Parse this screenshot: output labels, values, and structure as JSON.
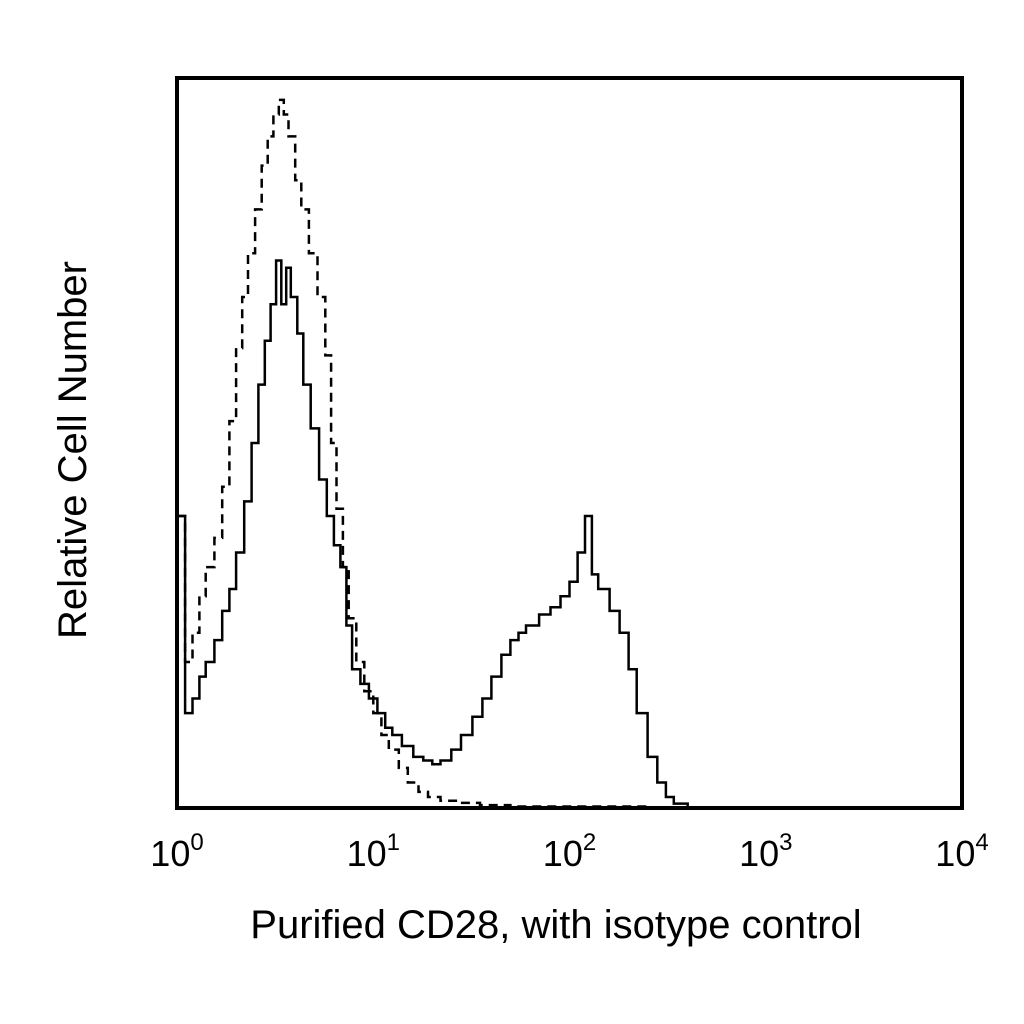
{
  "chart_data": {
    "type": "line",
    "title": "",
    "xlabel": "Purified CD28, with isotype control",
    "ylabel": "Relative Cell Number",
    "x_scale": "log",
    "xlim": [
      1,
      10000
    ],
    "ylim": [
      0,
      100
    ],
    "grid": false,
    "legend": "none",
    "x_ticks": [
      {
        "base": "10",
        "exp": "0",
        "value": 1
      },
      {
        "base": "10",
        "exp": "1",
        "value": 10
      },
      {
        "base": "10",
        "exp": "2",
        "value": 100
      },
      {
        "base": "10",
        "exp": "3",
        "value": 1000
      },
      {
        "base": "10",
        "exp": "4",
        "value": 10000
      }
    ],
    "series": [
      {
        "style": "solid",
        "color": "#000000",
        "points": [
          [
            1.0,
            40
          ],
          [
            1.1,
            13
          ],
          [
            1.2,
            15
          ],
          [
            1.3,
            18
          ],
          [
            1.4,
            20
          ],
          [
            1.55,
            23
          ],
          [
            1.7,
            27
          ],
          [
            1.85,
            30
          ],
          [
            2.0,
            35
          ],
          [
            2.2,
            42
          ],
          [
            2.4,
            50
          ],
          [
            2.6,
            58
          ],
          [
            2.8,
            64
          ],
          [
            3.0,
            69
          ],
          [
            3.2,
            75
          ],
          [
            3.4,
            69
          ],
          [
            3.6,
            74
          ],
          [
            3.8,
            70
          ],
          [
            4.1,
            65
          ],
          [
            4.4,
            58
          ],
          [
            4.8,
            52
          ],
          [
            5.3,
            45
          ],
          [
            5.8,
            40
          ],
          [
            6.3,
            36
          ],
          [
            6.8,
            33
          ],
          [
            7.3,
            25
          ],
          [
            7.8,
            19
          ],
          [
            8.6,
            17
          ],
          [
            9.5,
            15
          ],
          [
            10.5,
            13
          ],
          [
            11.5,
            11
          ],
          [
            12.5,
            10
          ],
          [
            14,
            8.5
          ],
          [
            16,
            7
          ],
          [
            18,
            6.5
          ],
          [
            20,
            6
          ],
          [
            22,
            6.5
          ],
          [
            25,
            8
          ],
          [
            28,
            10
          ],
          [
            32,
            12.5
          ],
          [
            36,
            15
          ],
          [
            40,
            18
          ],
          [
            45,
            21
          ],
          [
            50,
            23
          ],
          [
            55,
            24
          ],
          [
            60,
            25
          ],
          [
            70,
            26.5
          ],
          [
            80,
            27.5
          ],
          [
            90,
            29
          ],
          [
            100,
            31
          ],
          [
            110,
            35
          ],
          [
            120,
            40
          ],
          [
            130,
            32
          ],
          [
            140,
            30
          ],
          [
            160,
            27
          ],
          [
            180,
            24
          ],
          [
            200,
            19
          ],
          [
            220,
            13
          ],
          [
            250,
            7
          ],
          [
            280,
            3.5
          ],
          [
            310,
            1.5
          ],
          [
            340,
            0.6
          ],
          [
            400,
            0
          ]
        ]
      },
      {
        "style": "dashed",
        "color": "#000000",
        "points": [
          [
            1.0,
            40
          ],
          [
            1.1,
            20
          ],
          [
            1.2,
            24
          ],
          [
            1.3,
            29
          ],
          [
            1.4,
            33
          ],
          [
            1.55,
            37
          ],
          [
            1.7,
            44
          ],
          [
            1.85,
            53
          ],
          [
            2.0,
            63
          ],
          [
            2.15,
            70
          ],
          [
            2.3,
            76
          ],
          [
            2.5,
            82
          ],
          [
            2.7,
            88
          ],
          [
            2.9,
            92
          ],
          [
            3.1,
            95
          ],
          [
            3.3,
            97
          ],
          [
            3.5,
            95
          ],
          [
            3.7,
            92
          ],
          [
            4.0,
            86
          ],
          [
            4.3,
            82
          ],
          [
            4.7,
            76
          ],
          [
            5.2,
            70
          ],
          [
            5.7,
            62
          ],
          [
            6.1,
            50
          ],
          [
            6.5,
            41
          ],
          [
            7.0,
            33
          ],
          [
            7.5,
            26
          ],
          [
            8.2,
            20
          ],
          [
            9.0,
            16
          ],
          [
            10,
            13
          ],
          [
            11,
            10
          ],
          [
            12,
            8
          ],
          [
            13.5,
            5.5
          ],
          [
            15,
            3.5
          ],
          [
            17,
            2.2
          ],
          [
            19,
            1.5
          ],
          [
            22,
            1
          ],
          [
            27,
            0.7
          ],
          [
            35,
            0.4
          ],
          [
            50,
            0.2
          ],
          [
            80,
            0.2
          ],
          [
            150,
            0.2
          ],
          [
            250,
            0.1
          ],
          [
            350,
            0
          ]
        ]
      }
    ]
  }
}
